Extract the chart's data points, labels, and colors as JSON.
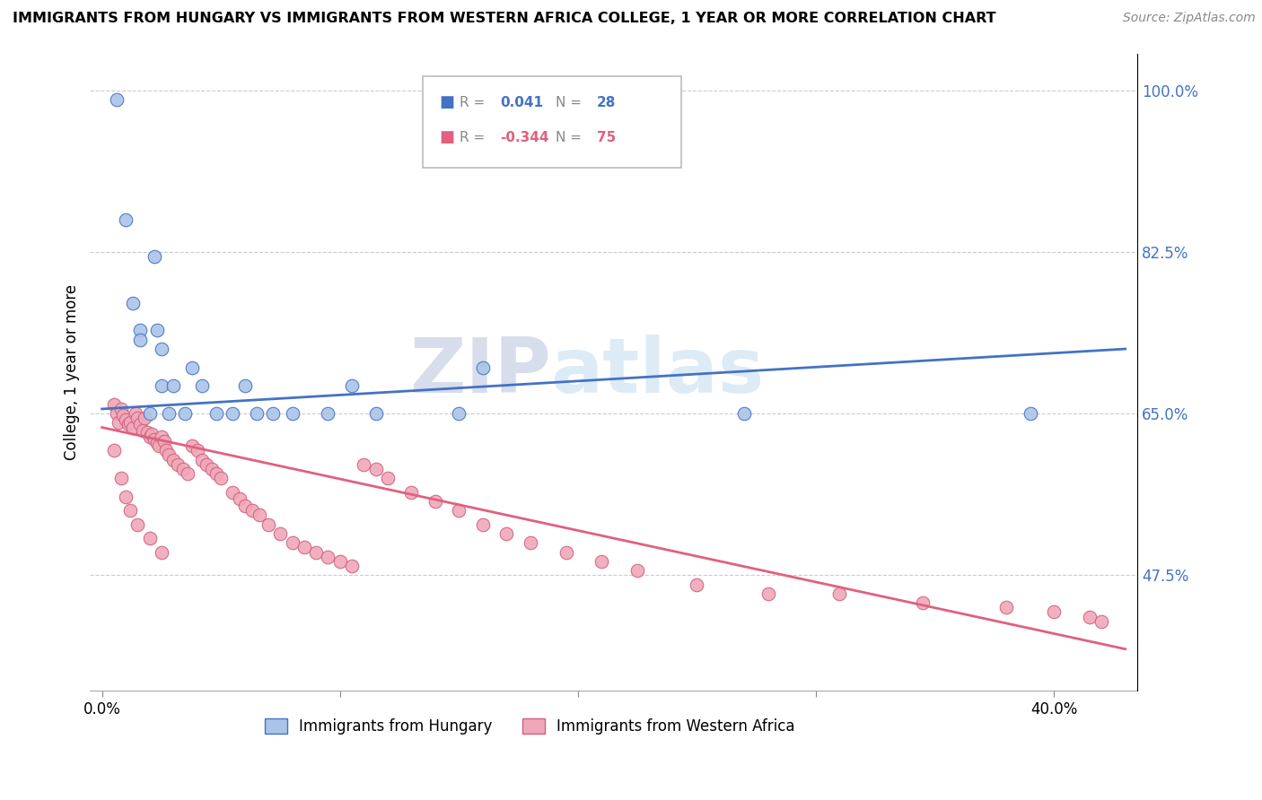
{
  "title": "IMMIGRANTS FROM HUNGARY VS IMMIGRANTS FROM WESTERN AFRICA COLLEGE, 1 YEAR OR MORE CORRELATION CHART",
  "source": "Source: ZipAtlas.com",
  "ylabel": "College, 1 year or more",
  "xlim": [
    -0.005,
    0.435
  ],
  "ylim": [
    0.35,
    1.04
  ],
  "yticks_right": [
    1.0,
    0.825,
    0.65,
    0.475
  ],
  "ytick_right_labels": [
    "100.0%",
    "82.5%",
    "65.0%",
    "47.5%"
  ],
  "color_hungary": "#aac4e8",
  "color_hungary_edge": "#4472c4",
  "color_hungary_line": "#4472c4",
  "color_w_africa": "#f0a8b8",
  "color_w_africa_edge": "#d06080",
  "color_w_africa_line": "#e06080",
  "watermark_color": "#d8e8f5",
  "watermark_color2": "#d0d8e8",
  "hungary_scatter_x": [
    0.006,
    0.01,
    0.013,
    0.016,
    0.016,
    0.02,
    0.022,
    0.023,
    0.025,
    0.025,
    0.028,
    0.03,
    0.035,
    0.038,
    0.042,
    0.048,
    0.055,
    0.06,
    0.065,
    0.072,
    0.08,
    0.095,
    0.105,
    0.115,
    0.15,
    0.16,
    0.27,
    0.39
  ],
  "hungary_scatter_y": [
    0.99,
    0.86,
    0.77,
    0.74,
    0.73,
    0.65,
    0.82,
    0.74,
    0.68,
    0.72,
    0.65,
    0.68,
    0.65,
    0.7,
    0.68,
    0.65,
    0.65,
    0.68,
    0.65,
    0.65,
    0.65,
    0.65,
    0.68,
    0.65,
    0.65,
    0.7,
    0.65,
    0.65
  ],
  "w_africa_scatter_x": [
    0.005,
    0.006,
    0.007,
    0.008,
    0.009,
    0.01,
    0.011,
    0.012,
    0.013,
    0.014,
    0.015,
    0.016,
    0.017,
    0.018,
    0.019,
    0.02,
    0.021,
    0.022,
    0.023,
    0.024,
    0.025,
    0.026,
    0.027,
    0.028,
    0.03,
    0.032,
    0.034,
    0.036,
    0.038,
    0.04,
    0.042,
    0.044,
    0.046,
    0.048,
    0.05,
    0.055,
    0.058,
    0.06,
    0.063,
    0.066,
    0.07,
    0.075,
    0.08,
    0.085,
    0.09,
    0.095,
    0.1,
    0.105,
    0.11,
    0.115,
    0.12,
    0.13,
    0.14,
    0.15,
    0.16,
    0.17,
    0.18,
    0.195,
    0.21,
    0.225,
    0.25,
    0.28,
    0.31,
    0.345,
    0.38,
    0.4,
    0.415,
    0.42,
    0.005,
    0.008,
    0.01,
    0.012,
    0.015,
    0.02,
    0.025
  ],
  "w_africa_scatter_y": [
    0.66,
    0.65,
    0.64,
    0.655,
    0.648,
    0.643,
    0.638,
    0.64,
    0.635,
    0.65,
    0.645,
    0.638,
    0.632,
    0.645,
    0.63,
    0.625,
    0.628,
    0.622,
    0.618,
    0.615,
    0.625,
    0.62,
    0.61,
    0.605,
    0.6,
    0.595,
    0.59,
    0.585,
    0.615,
    0.61,
    0.6,
    0.595,
    0.59,
    0.585,
    0.58,
    0.565,
    0.558,
    0.55,
    0.545,
    0.54,
    0.53,
    0.52,
    0.51,
    0.505,
    0.5,
    0.495,
    0.49,
    0.485,
    0.595,
    0.59,
    0.58,
    0.565,
    0.555,
    0.545,
    0.53,
    0.52,
    0.51,
    0.5,
    0.49,
    0.48,
    0.465,
    0.455,
    0.455,
    0.445,
    0.44,
    0.435,
    0.43,
    0.425,
    0.61,
    0.58,
    0.56,
    0.545,
    0.53,
    0.515,
    0.5
  ],
  "hungary_line_x": [
    0.0,
    0.43
  ],
  "hungary_line_y": [
    0.655,
    0.72
  ],
  "w_africa_line_x": [
    0.0,
    0.43
  ],
  "w_africa_line_y": [
    0.635,
    0.395
  ]
}
